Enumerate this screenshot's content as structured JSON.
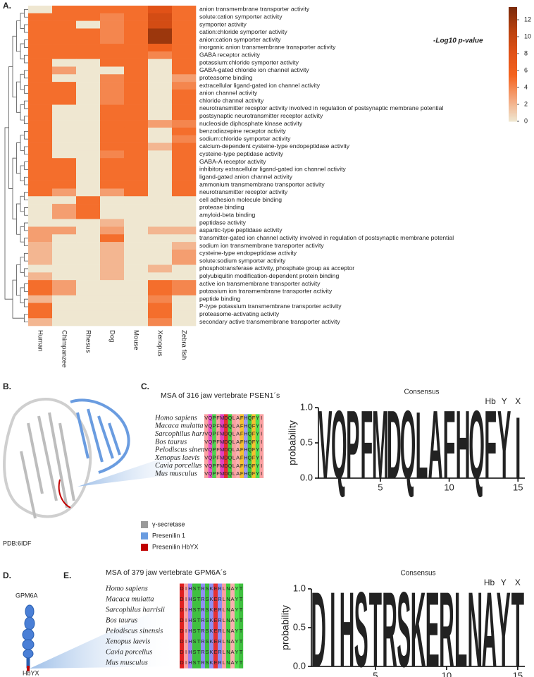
{
  "panel_labels": [
    "A.",
    "B.",
    "C.",
    "D.",
    "E."
  ],
  "chart_data": [
    {
      "type": "heatmap",
      "color_label": "-Log10 p-value",
      "rows": [
        "anion transmembrane transporter activity",
        "solute:cation symporter activity",
        "symporter activity",
        "cation:chloride symporter activity",
        "anion:cation symporter activity",
        "inorganic anion transmembrane transporter activity",
        "GABA receptor activity",
        "potassium:chloride symporter activity",
        "GABA-gated chloride ion channel activity",
        "proteasome binding",
        "extracellular ligand-gated ion channel activity",
        "anion channel activity",
        "chloride channel activity",
        "neurotransmitter receptor activity involved in regulation of postsynaptic membrane potential",
        "postsynaptic neurotransmitter receptor activity",
        "nucleoside diphosphate kinase activity",
        "benzodiazepine receptor activity",
        "sodium:chloride symporter activity",
        "calcium-dependent cysteine-type endopeptidase activity",
        "cysteine-type peptidase activity",
        "GABA-A receptor activity",
        "inhibitory extracellular ligand-gated ion channel activity",
        "ligand-gated anion channel activity",
        "ammonium transmembrane transporter activity",
        "neurotransmitter receptor activity",
        "cell adhesion molecule binding",
        "protease binding",
        "amyloid-beta binding",
        "peptidase activity",
        "aspartic-type peptidase activity",
        "transmitter-gated ion channel activity involved in regulation of postsynaptic membrane potential",
        "sodium ion transmembrane transporter activity",
        "cysteine-type endopeptidase activity",
        "solute:sodium symporter activity",
        "phosphotransferase activity, phosphate group as acceptor",
        "polyubiquitin modification-dependent protein binding",
        "active ion transmembrane transporter activity",
        "potassium ion transmembrane transporter activity",
        "peptide binding",
        "P-type potassium transmembrane transporter activity",
        "proteasome-activating activity",
        "secondary active transmembrane transporter activity"
      ],
      "columns": [
        "Human",
        "Chimpanzee",
        "Rhesus",
        "Dog",
        "Mouse",
        "Xenopus",
        "Zebra fish"
      ],
      "values": [
        [
          0,
          5,
          5,
          5,
          5,
          8,
          5
        ],
        [
          5,
          5,
          5,
          4,
          5,
          9,
          5
        ],
        [
          5,
          5,
          0,
          4,
          5,
          9,
          5
        ],
        [
          5,
          5,
          5,
          4,
          5,
          12,
          5
        ],
        [
          5,
          5,
          5,
          4,
          5,
          12,
          5
        ],
        [
          5,
          5,
          5,
          5,
          5,
          6,
          5
        ],
        [
          5,
          5,
          5,
          5,
          5,
          4,
          5
        ],
        [
          5,
          0,
          0,
          5,
          5,
          0,
          5
        ],
        [
          5,
          3,
          0,
          0,
          5,
          0,
          5
        ],
        [
          5,
          0,
          0,
          4,
          5,
          0,
          3
        ],
        [
          5,
          5,
          0,
          4,
          5,
          0,
          4
        ],
        [
          5,
          5,
          0,
          4,
          5,
          0,
          5
        ],
        [
          5,
          5,
          0,
          4,
          5,
          0,
          5
        ],
        [
          5,
          0,
          0,
          5,
          5,
          0,
          5
        ],
        [
          5,
          0,
          0,
          5,
          5,
          0,
          5
        ],
        [
          5,
          0,
          0,
          5,
          5,
          3,
          4
        ],
        [
          5,
          0,
          0,
          5,
          5,
          0,
          5
        ],
        [
          5,
          0,
          0,
          5,
          5,
          0,
          4
        ],
        [
          5,
          0,
          0,
          5,
          5,
          2,
          5
        ],
        [
          5,
          0,
          0,
          4,
          5,
          0,
          5
        ],
        [
          5,
          5,
          0,
          5,
          5,
          0,
          5
        ],
        [
          5,
          5,
          0,
          5,
          5,
          0,
          5
        ],
        [
          5,
          5,
          0,
          5,
          5,
          0,
          5
        ],
        [
          5,
          5,
          0,
          5,
          5,
          0,
          5
        ],
        [
          5,
          3,
          0,
          3,
          5,
          0,
          5
        ],
        [
          0,
          0,
          5,
          0,
          0,
          0,
          0
        ],
        [
          0,
          3,
          5,
          0,
          0,
          0,
          0
        ],
        [
          0,
          3,
          5,
          0,
          0,
          0,
          0
        ],
        [
          0,
          0,
          0,
          2,
          0,
          0,
          0
        ],
        [
          3,
          3,
          0,
          3,
          0,
          2,
          2
        ],
        [
          3,
          0,
          0,
          5,
          0,
          0,
          0
        ],
        [
          2,
          0,
          0,
          2,
          0,
          0,
          2
        ],
        [
          2,
          0,
          0,
          2,
          0,
          0,
          3
        ],
        [
          2,
          0,
          0,
          2,
          0,
          0,
          3
        ],
        [
          0,
          0,
          0,
          2,
          0,
          2,
          0
        ],
        [
          2,
          0,
          0,
          2,
          0,
          0,
          0
        ],
        [
          5,
          3,
          0,
          0,
          0,
          5,
          4
        ],
        [
          5,
          3,
          0,
          0,
          0,
          5,
          4
        ],
        [
          2,
          0,
          0,
          0,
          0,
          4,
          0
        ],
        [
          5,
          0,
          0,
          0,
          0,
          5,
          0
        ],
        [
          5,
          0,
          0,
          0,
          0,
          5,
          0
        ],
        [
          2,
          0,
          0,
          0,
          0,
          4,
          0
        ]
      ],
      "zlim": [
        0,
        13.5
      ],
      "zticks": [
        0,
        2,
        4,
        6,
        8,
        10,
        12
      ],
      "colors": [
        "#efe7d1",
        "#f4a57a",
        "#f4641f",
        "#e05117",
        "#b8410f",
        "#7a2a0b"
      ]
    },
    {
      "type": "logo",
      "title": "Consensus",
      "ylabel": "probability",
      "categories": [
        "V",
        "Q",
        "P",
        "F",
        "M",
        "D",
        "Q",
        "L",
        "A",
        "F",
        "H",
        "Q",
        "F",
        "Y",
        "I"
      ],
      "values": [
        1,
        1,
        1,
        1,
        1,
        1,
        1,
        0.98,
        1,
        1,
        1,
        1,
        1,
        1,
        0.9
      ],
      "xlim": [
        0.5,
        15.5
      ],
      "xticks": [
        5,
        10,
        15
      ],
      "ylim": [
        0,
        1
      ],
      "yticks": [
        {
          "value": 0,
          "label": "0.0"
        },
        {
          "value": 0.5,
          "label": "0.5"
        },
        {
          "value": 1,
          "label": "1.0"
        }
      ],
      "annotations": [
        "Hb",
        "Y",
        "X"
      ]
    },
    {
      "type": "logo",
      "title": "Consensus",
      "ylabel": "probability",
      "categories": [
        "D",
        "I",
        "H",
        "S",
        "T",
        "R",
        "S",
        "K",
        "E",
        "R",
        "L",
        "N",
        "A",
        "Y",
        "T"
      ],
      "values": [
        1,
        1,
        1,
        1,
        1,
        1,
        1,
        1,
        1,
        1,
        1,
        1,
        1,
        1,
        1
      ],
      "xlim": [
        0.5,
        15.5
      ],
      "xticks": [
        5,
        10,
        15
      ],
      "ylim": [
        0,
        1
      ],
      "yticks": [
        {
          "value": 0,
          "label": "0.0"
        },
        {
          "value": 0.5,
          "label": "0.5"
        },
        {
          "value": 1,
          "label": "1.0"
        }
      ],
      "annotations": [
        "Hb",
        "Y",
        "X"
      ]
    }
  ],
  "structure": {
    "pdb": "PDB:6IDF",
    "legend": [
      {
        "label": "γ-secretase",
        "color": "#9a9a9a"
      },
      {
        "label": "Presenilin 1",
        "color": "#6a9ce0"
      },
      {
        "label": "Presenilin HbYX",
        "color": "#c00000"
      }
    ]
  },
  "msa_psen1": {
    "title": "MSA of 316 jaw vertebrate PSEN1´s",
    "species": [
      "Homo sapiens",
      "Macaca mulatta",
      "Sarcophilus harrisii",
      "Bos taurus",
      "Pelodiscus sinensis",
      "Xenopus laevis",
      "Cavia porcellus",
      "Mus musculus"
    ],
    "sequences": [
      "VQPFMDQLAFHQFYI",
      "VQPFMDQLAFHQFYI",
      "VQPFMDQLAFHQFYI",
      "VQPFMDQLAFHQFYI",
      "VQPFMDQLAFHQFYI",
      "VQPFMDQLAFHQFYI",
      "VQPFMDQLAFHQFYI",
      "VQPFMDQLAFHQFYI"
    ]
  },
  "gpm6a": {
    "name": "GPM6A",
    "motif": "HbYX"
  },
  "msa_gpm6a": {
    "title": "MSA of 379  jaw vertebrate GPM6A´s",
    "species": [
      "Homo sapiens",
      "Macaca mulatta",
      "Sarcophilus harrisii",
      "Bos taurus",
      "Pelodiscus sinensis",
      "Xenopus laevis",
      "Cavia porcellus",
      "Mus musculus"
    ],
    "sequences": [
      "DIHSTRSKERLNAYT",
      "DIHSTRSKERLNAYT",
      "DIHSTRSKERLNAYT",
      "DIHSTRSKERLNAYT",
      "DIHSTRSKERLNAYT",
      "DIHSTRSKERLNAYT",
      "DIHSTRSKERLNAYT",
      "DIHSTRSKERLNAYT"
    ]
  }
}
